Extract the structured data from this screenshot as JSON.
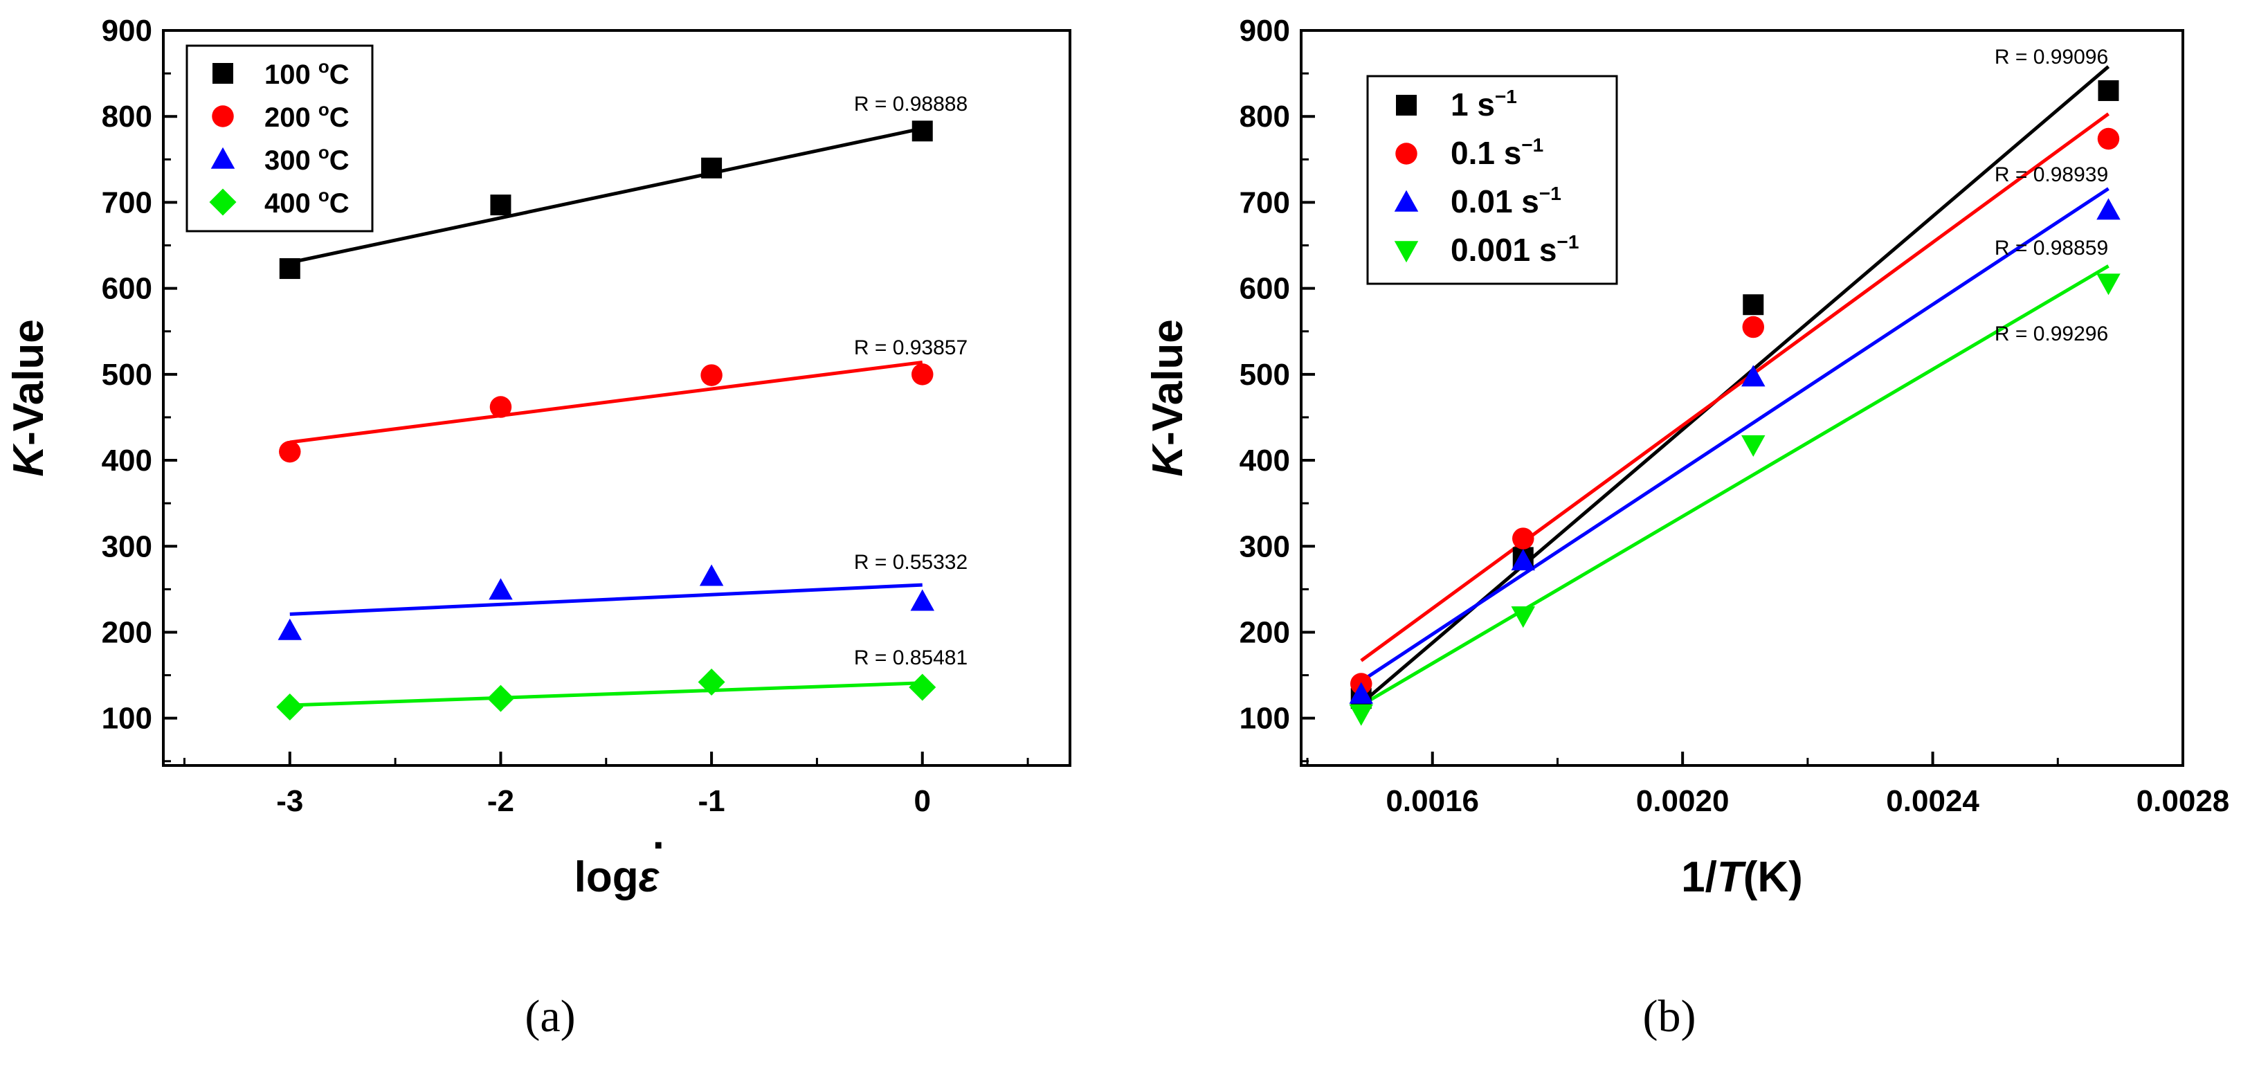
{
  "chart_data": [
    {
      "id": "a",
      "type": "scatter",
      "caption": "(a)",
      "xlabel": "log",
      "xlabel_symbol": "ε",
      "xlabel_dot": "·",
      "ylabel_italic": "K",
      "ylabel_rest": "-Value",
      "xlim": [
        -3.6,
        0.7
      ],
      "ylim": [
        45,
        900
      ],
      "xticks": [
        -3,
        -2,
        -1,
        0
      ],
      "xtick_labels": [
        "-3",
        "-2",
        "-1",
        "0"
      ],
      "yticks": [
        100,
        200,
        300,
        400,
        500,
        600,
        700,
        800,
        900
      ],
      "ytick_labels": [
        "100",
        "200",
        "300",
        "400",
        "500",
        "600",
        "700",
        "800",
        "900"
      ],
      "legend_position": "top-left",
      "series": [
        {
          "name": "100 °C",
          "label_main": "100 ",
          "label_sup": "o",
          "label_unit": "C",
          "marker": "square",
          "color": "#000000",
          "x": [
            -3,
            -2,
            -1,
            0
          ],
          "y": [
            623,
            697,
            740,
            783
          ],
          "fit": {
            "x": [
              -3,
              0
            ],
            "y": [
              630,
              786
            ]
          },
          "r_label": "R = 0.98888"
        },
        {
          "name": "200 °C",
          "label_main": "200 ",
          "label_sup": "o",
          "label_unit": "C",
          "marker": "circle",
          "color": "#ff0000",
          "x": [
            -3,
            -2,
            -1,
            0
          ],
          "y": [
            410,
            462,
            499,
            500
          ],
          "fit": {
            "x": [
              -3,
              0
            ],
            "y": [
              421,
              514
            ]
          },
          "r_label": "R = 0.93857"
        },
        {
          "name": "300 °C",
          "label_main": "300 ",
          "label_sup": "o",
          "label_unit": "C",
          "marker": "triangle-up",
          "color": "#0000ff",
          "x": [
            -3,
            -2,
            -1,
            0
          ],
          "y": [
            202,
            249,
            265,
            236
          ],
          "fit": {
            "x": [
              -3,
              0
            ],
            "y": [
              221,
              255
            ]
          },
          "r_label": "R = 0.55332"
        },
        {
          "name": "400 °C",
          "label_main": "400 ",
          "label_sup": "o",
          "label_unit": "C",
          "marker": "diamond",
          "color": "#00ee00",
          "x": [
            -3,
            -2,
            -1,
            0
          ],
          "y": [
            113,
            123,
            142,
            136
          ],
          "fit": {
            "x": [
              -3,
              0
            ],
            "y": [
              115,
              141
            ]
          },
          "r_label": "R = 0.85481"
        }
      ]
    },
    {
      "id": "b",
      "type": "scatter",
      "caption": "(b)",
      "xlabel_pre": "1/",
      "xlabel_italic": "T",
      "xlabel_post": "(K)",
      "ylabel_italic": "K",
      "ylabel_rest": "-Value",
      "xlim": [
        0.00139,
        0.0028
      ],
      "ylim": [
        45,
        900
      ],
      "xticks": [
        0.0016,
        0.002,
        0.0024,
        0.0028
      ],
      "xtick_labels": [
        "0.0016",
        "0.0020",
        "0.0024",
        "0.0028"
      ],
      "yticks": [
        100,
        200,
        300,
        400,
        500,
        600,
        700,
        800,
        900
      ],
      "ytick_labels": [
        "100",
        "200",
        "300",
        "400",
        "500",
        "600",
        "700",
        "800",
        "900"
      ],
      "legend_position": "top-left",
      "series": [
        {
          "name": "1 s−1",
          "label_main": "1 s",
          "label_sup": "−1",
          "marker": "square",
          "color": "#000000",
          "x": [
            0.001486,
            0.001745,
            0.002113,
            0.002681
          ],
          "y": [
            123,
            287,
            581,
            830
          ],
          "fit": {
            "x": [
              0.001486,
              0.002681
            ],
            "y": [
              117,
              858
            ]
          },
          "r_label": "R = 0.99096"
        },
        {
          "name": "0.1 s−1",
          "label_main": "0.1 s",
          "label_sup": "−1",
          "marker": "circle",
          "color": "#ff0000",
          "x": [
            0.001486,
            0.001745,
            0.002113,
            0.002681
          ],
          "y": [
            140,
            309,
            555,
            774
          ],
          "fit": {
            "x": [
              0.001486,
              0.002681
            ],
            "y": [
              167,
              803
            ]
          },
          "r_label": "R = 0.98939"
        },
        {
          "name": "0.01 s−1",
          "label_main": "0.01 s",
          "label_sup": "−1",
          "marker": "triangle-up",
          "color": "#0000ff",
          "x": [
            0.001486,
            0.001745,
            0.002113,
            0.002681
          ],
          "y": [
            128,
            283,
            497,
            691
          ],
          "fit": {
            "x": [
              0.001486,
              0.002681
            ],
            "y": [
              143,
              716
            ]
          },
          "r_label": "R = 0.98859"
        },
        {
          "name": "0.001 s−1",
          "label_main": "0.001 s",
          "label_sup": "−1",
          "marker": "triangle-down",
          "color": "#00ee00",
          "x": [
            0.001486,
            0.001745,
            0.002113,
            0.002681
          ],
          "y": [
            105,
            219,
            418,
            606
          ],
          "fit": {
            "x": [
              0.001486,
              0.002681
            ],
            "y": [
              115,
              626
            ]
          },
          "r_label": "R = 0.99296"
        }
      ]
    }
  ]
}
